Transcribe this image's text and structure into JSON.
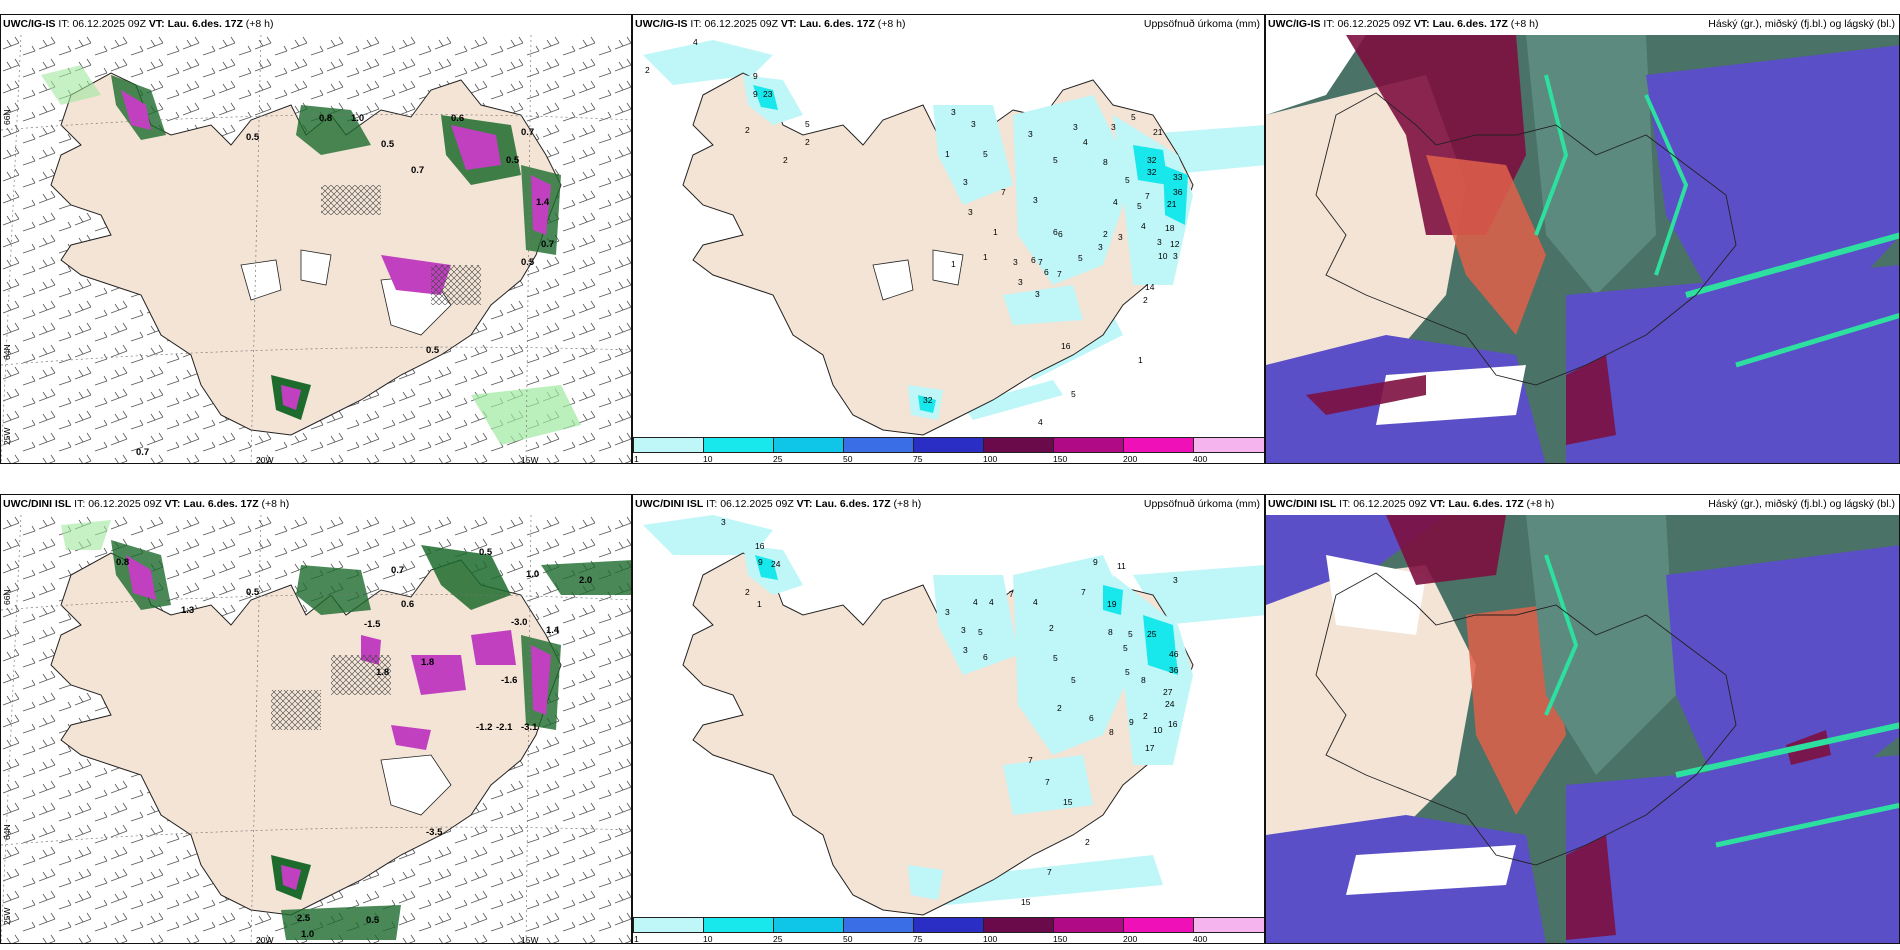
{
  "panels": {
    "top_left": {
      "model": "UWC/IG-IS",
      "it_label": "IT:",
      "it_value": "06.12.2025 09Z",
      "vt_label": "VT:",
      "vt_value": "Lau. 6.des. 17Z",
      "lead": "(+8 h)"
    },
    "top_mid": {
      "model": "UWC/IG-IS",
      "it_label": "IT:",
      "it_value": "06.12.2025 09Z",
      "vt_label": "VT:",
      "vt_value": "Lau. 6.des. 17Z",
      "lead": "(+8 h)",
      "right_title": "Uppsöfnuð úrkoma (mm)"
    },
    "top_right": {
      "model": "UWC/IG-IS",
      "it_label": "IT:",
      "it_value": "06.12.2025 09Z",
      "vt_label": "VT:",
      "vt_value": "Lau. 6.des. 17Z",
      "lead": "(+8 h)",
      "right_title": "Háský (gr.), miðský (fj.bl.) og lágský (bl.)"
    },
    "bottom_left": {
      "model": "UWC/DINI ISL",
      "it_label": "IT:",
      "it_value": "06.12.2025 09Z",
      "vt_label": "VT:",
      "vt_value": "Lau. 6.des. 17Z",
      "lead": "(+8 h)"
    },
    "bottom_mid": {
      "model": "UWC/DINI ISL",
      "it_label": "IT:",
      "it_value": "06.12.2025 09Z",
      "vt_label": "VT:",
      "vt_value": "Lau. 6.des. 17Z",
      "lead": "(+8 h)",
      "right_title": "Uppsöfnuð úrkoma (mm)"
    },
    "bottom_right": {
      "model": "UWC/DINI ISL",
      "it_label": "IT:",
      "it_value": "06.12.2025 09Z",
      "vt_label": "VT:",
      "vt_value": "Lau. 6.des. 17Z",
      "lead": "(+8 h)",
      "right_title": "Háský (gr.), miðský (fj.bl.) og lágský (bl.)"
    }
  },
  "axes": {
    "lat_66": "66N",
    "lat_64": "64N",
    "lon_25": "25W",
    "lon_20": "20W",
    "lon_15": "15W"
  },
  "colorbar": {
    "ticks": [
      "1",
      "10",
      "25",
      "50",
      "75",
      "100",
      "150",
      "200",
      "400"
    ],
    "colors": [
      "#bff6f8",
      "#18e8ec",
      "#10c6e8",
      "#3a6ee6",
      "#2a2ec4",
      "#6a0a4a",
      "#b00a86",
      "#f010b8",
      "#f6b4ee"
    ]
  },
  "colors": {
    "land": "#f3e4d6",
    "precip_light": "#bff6f8",
    "precip_mid": "#18e8ec",
    "snow_green": "#9ee89e",
    "snow_dark": "#1d6b2d",
    "precip_magenta": "#c040c0",
    "cloud_high": "#5c8a7e",
    "cloud_mid": "#5a4fc6",
    "cloud_low": "#7d1040",
    "cloud_low_red": "#e0604a",
    "cloud_edge": "#2de0a0"
  },
  "labels": {
    "top_left": [
      "0.5",
      "0.8",
      "1.0",
      "0.5",
      "0.7",
      "0.6",
      "0.7",
      "0.5",
      "0.7",
      "0.5",
      "0.5",
      "0.7",
      "1.4"
    ],
    "top_mid": [
      "4",
      "2",
      "9",
      "9",
      "23",
      "5",
      "2",
      "2",
      "1",
      "3",
      "3",
      "5",
      "3",
      "3",
      "5",
      "6",
      "7",
      "3",
      "3",
      "7",
      "3",
      "4",
      "3",
      "5",
      "4",
      "3",
      "5",
      "8",
      "21",
      "32",
      "32",
      "33",
      "36",
      "21",
      "5",
      "7",
      "6",
      "2",
      "3",
      "4",
      "3",
      "18",
      "12",
      "10",
      "3",
      "6",
      "6",
      "7",
      "5",
      "3",
      "3",
      "3",
      "14",
      "2",
      "1",
      "1",
      "16",
      "1",
      "5",
      "4",
      "32",
      "2",
      "1"
    ],
    "bottom_left": [
      "0.5",
      "0.7",
      "0.8",
      "1.3",
      "0.5",
      "1.0",
      "2.0",
      "-1.5",
      "1.8",
      "-2.1",
      "-1.2",
      "-1.6",
      "-3.0",
      "-3.5",
      "1.4",
      "1.0",
      "2.5",
      "1.8",
      "0.5",
      "0.6",
      "-3.1"
    ],
    "bottom_mid": [
      "3",
      "16",
      "9",
      "24",
      "2",
      "1",
      "9",
      "11",
      "3",
      "4",
      "4",
      "7",
      "3",
      "3",
      "3",
      "5",
      "4",
      "6",
      "5",
      "2",
      "7",
      "8",
      "19",
      "5",
      "25",
      "5",
      "46",
      "5",
      "5",
      "36",
      "2",
      "8",
      "27",
      "6",
      "24",
      "2",
      "8",
      "9",
      "10",
      "16",
      "15",
      "7",
      "7",
      "2",
      "17",
      "15",
      "7"
    ]
  }
}
